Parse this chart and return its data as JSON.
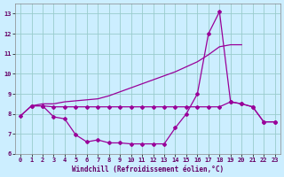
{
  "title": "",
  "xlabel": "Windchill (Refroidissement éolien,°C)",
  "ylabel": "",
  "bg_color": "#cceeff",
  "grid_color": "#99cccc",
  "line_color": "#990099",
  "xlim": [
    -0.5,
    23.5
  ],
  "ylim": [
    6.0,
    13.5
  ],
  "yticks": [
    6,
    7,
    8,
    9,
    10,
    11,
    12,
    13
  ],
  "xticks": [
    0,
    1,
    2,
    3,
    4,
    5,
    6,
    7,
    8,
    9,
    10,
    11,
    12,
    13,
    14,
    15,
    16,
    17,
    18,
    19,
    20,
    21,
    22,
    23
  ],
  "line1_x": [
    0,
    1,
    2,
    3,
    4,
    5,
    6,
    7,
    8,
    9,
    10,
    11,
    12,
    13,
    14,
    15,
    16,
    17,
    18,
    19,
    20,
    21,
    22,
    23
  ],
  "line1_y": [
    7.9,
    8.4,
    8.4,
    7.85,
    7.75,
    6.95,
    6.6,
    6.7,
    6.55,
    6.55,
    6.5,
    6.5,
    6.5,
    6.5,
    7.3,
    8.0,
    9.0,
    12.0,
    13.1,
    8.6,
    8.5,
    8.35,
    7.6,
    7.6
  ],
  "line2_x": [
    1,
    2,
    3,
    4,
    5,
    6,
    7,
    8,
    9,
    10,
    11,
    12,
    13,
    14,
    15,
    16,
    17,
    18,
    19,
    20,
    21,
    22,
    23
  ],
  "line2_y": [
    8.4,
    8.4,
    8.35,
    8.35,
    8.35,
    8.35,
    8.35,
    8.35,
    8.35,
    8.35,
    8.35,
    8.35,
    8.35,
    8.35,
    8.35,
    8.35,
    8.35,
    8.35,
    8.6,
    8.5,
    8.35,
    7.6,
    7.6
  ],
  "line3_x": [
    0,
    1,
    2,
    3,
    4,
    5,
    6,
    7,
    8,
    9,
    10,
    11,
    12,
    13,
    14,
    15,
    16,
    17,
    18,
    19,
    20
  ],
  "line3_y": [
    7.9,
    8.4,
    8.5,
    8.5,
    8.6,
    8.65,
    8.7,
    8.75,
    8.9,
    9.1,
    9.3,
    9.5,
    9.7,
    9.9,
    10.1,
    10.35,
    10.6,
    10.95,
    11.35,
    11.45,
    11.45
  ]
}
